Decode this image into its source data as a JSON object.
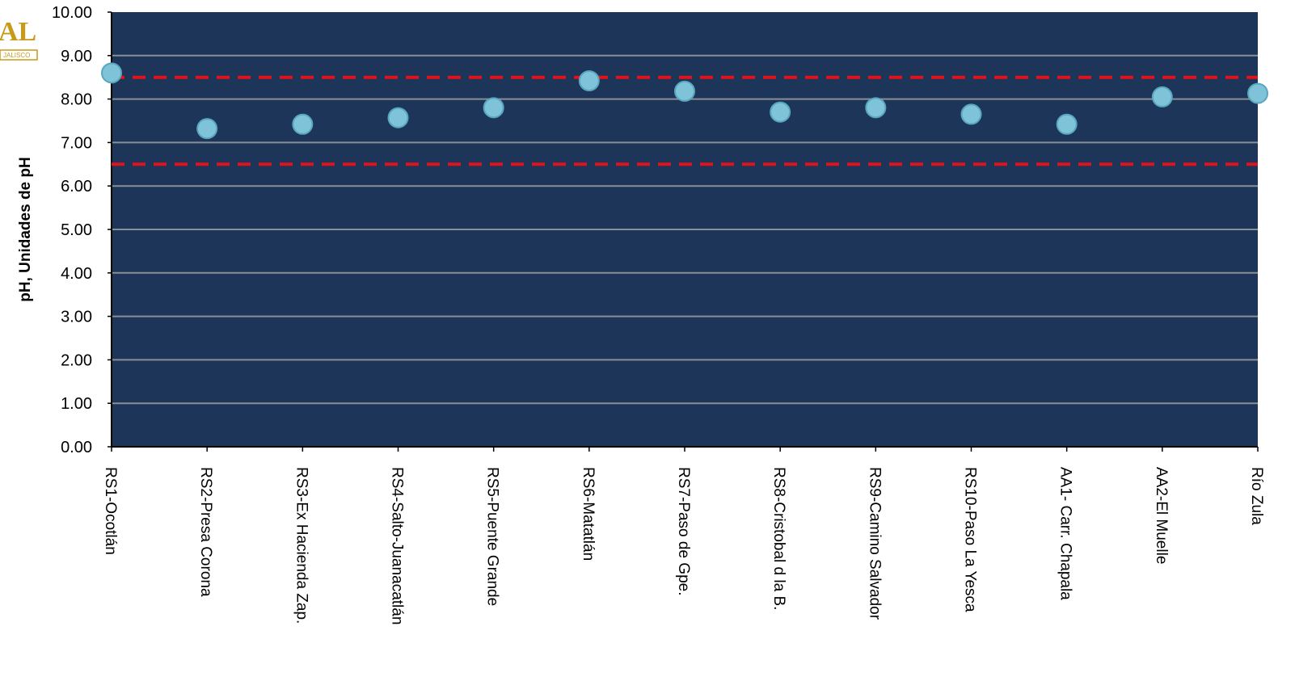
{
  "colors": {
    "plot_background": "#1c3559",
    "grid": "#8a8f96",
    "marker": "#7ec3d8",
    "marker_edge": "#5aa6bf",
    "limit_line": "#e0121c",
    "logo": "#c89a1a"
  },
  "logo": {
    "text": "AL",
    "subtext": "JALISCO"
  },
  "chart_data": {
    "type": "scatter",
    "ylabel": "pH, Unidades de pH",
    "xlabel": "",
    "title": "",
    "ylim": [
      0,
      10
    ],
    "yticks": [
      "0.00",
      "1.00",
      "2.00",
      "3.00",
      "4.00",
      "5.00",
      "6.00",
      "7.00",
      "8.00",
      "9.00",
      "10.00"
    ],
    "grid": true,
    "categories": [
      "RS1-Ocotlán",
      "RS2-Presa Corona",
      "RS3-Ex Hacienda  Zap.",
      "RS4-Salto-Juanacatlán",
      "RS5-Puente Grande",
      "RS6-Matatlán",
      "RS7-Paso de Gpe.",
      "RS8-Cristobal  d la B.",
      "RS9-Camino Salvador",
      "RS10-Paso La Yesca",
      "AA1- Carr. Chapala",
      "AA2-El Muelle",
      "Río Zula"
    ],
    "series": [
      {
        "values": [
          8.6,
          7.32,
          7.42,
          7.57,
          7.8,
          8.42,
          8.18,
          7.7,
          7.8,
          7.65,
          7.42,
          8.05,
          8.13
        ]
      }
    ],
    "reference_lines": [
      {
        "y": 8.5,
        "style": "dashed"
      },
      {
        "y": 6.5,
        "style": "dashed"
      }
    ]
  }
}
